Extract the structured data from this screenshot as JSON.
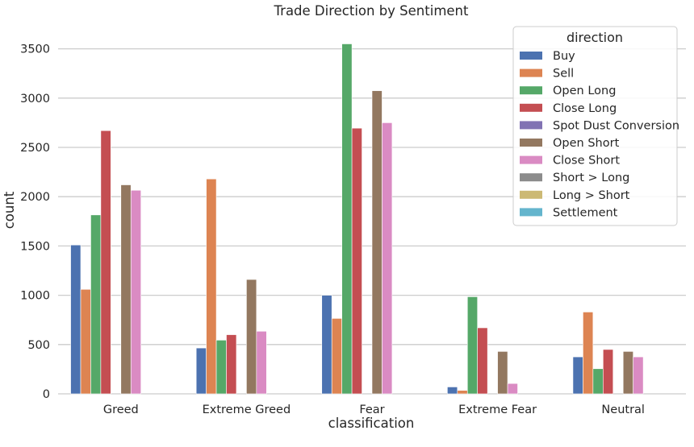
{
  "chart_data": {
    "type": "bar",
    "title": "Trade Direction by Sentiment",
    "xlabel": "classification",
    "ylabel": "count",
    "ylim": [
      0,
      3750
    ],
    "yticks": [
      0,
      500,
      1000,
      1500,
      2000,
      2500,
      3000,
      3500
    ],
    "grid": true,
    "legend_title": "direction",
    "legend_placement": "top-right",
    "categories": [
      "Greed",
      "Extreme Greed",
      "Fear",
      "Extreme Fear",
      "Neutral"
    ],
    "series": [
      {
        "name": "Buy",
        "color": "#4c72b0",
        "values": [
          1510,
          465,
          1000,
          70,
          375
        ]
      },
      {
        "name": "Sell",
        "color": "#dd8452",
        "values": [
          1060,
          2180,
          765,
          35,
          830
        ]
      },
      {
        "name": "Open Long",
        "color": "#55a868",
        "values": [
          1815,
          545,
          3550,
          985,
          255
        ]
      },
      {
        "name": "Close Long",
        "color": "#c44e52",
        "values": [
          2670,
          600,
          2695,
          670,
          450
        ]
      },
      {
        "name": "Spot Dust Conversion",
        "color": "#8172b3",
        "values": [
          0,
          0,
          0,
          0,
          0
        ]
      },
      {
        "name": "Open Short",
        "color": "#937860",
        "values": [
          2120,
          1160,
          3075,
          430,
          430
        ]
      },
      {
        "name": "Close Short",
        "color": "#da8bc3",
        "values": [
          2065,
          635,
          2750,
          105,
          375
        ]
      },
      {
        "name": "Short > Long",
        "color": "#8c8c8c",
        "values": [
          0,
          0,
          0,
          0,
          0
        ]
      },
      {
        "name": "Long > Short",
        "color": "#ccb974",
        "values": [
          0,
          0,
          0,
          0,
          0
        ]
      },
      {
        "name": "Settlement",
        "color": "#64b5cd",
        "values": [
          0,
          0,
          0,
          0,
          0
        ]
      }
    ]
  }
}
